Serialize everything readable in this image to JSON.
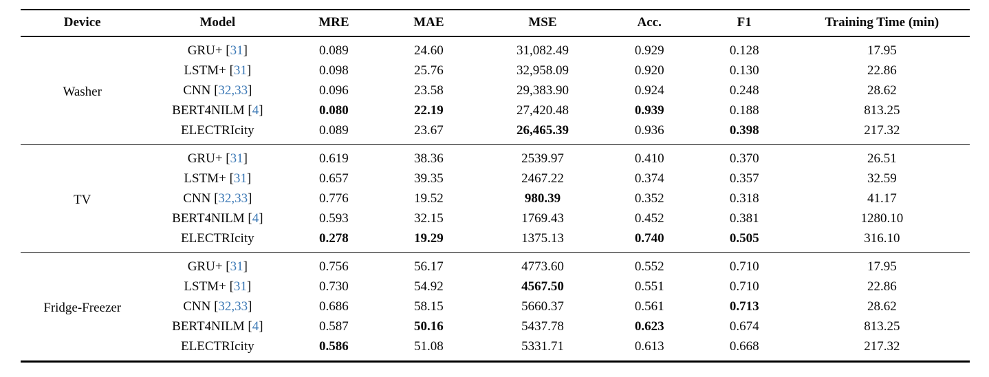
{
  "colors": {
    "citation_blue": "#3b78b5",
    "rule_black": "#000000",
    "text": "#0a0a0a"
  },
  "chart_data": {
    "type": "table",
    "columns": [
      "Device",
      "Model",
      "MRE",
      "MAE",
      "MSE",
      "Acc.",
      "F1",
      "Training Time (min)"
    ],
    "groups": [
      {
        "device": "Washer",
        "rows": [
          {
            "model": "GRU+",
            "cite": "31",
            "mre": "0.089",
            "mae": "24.60",
            "mse": "31,082.49",
            "acc": "0.929",
            "f1": "0.128",
            "time": "17.95",
            "bold": []
          },
          {
            "model": "LSTM+",
            "cite": "31",
            "mre": "0.098",
            "mae": "25.76",
            "mse": "32,958.09",
            "acc": "0.920",
            "f1": "0.130",
            "time": "22.86",
            "bold": []
          },
          {
            "model": "CNN",
            "cite": "32,33",
            "mre": "0.096",
            "mae": "23.58",
            "mse": "29,383.90",
            "acc": "0.924",
            "f1": "0.248",
            "time": "28.62",
            "bold": []
          },
          {
            "model": "BERT4NILM",
            "cite": "4",
            "mre": "0.080",
            "mae": "22.19",
            "mse": "27,420.48",
            "acc": "0.939",
            "f1": "0.188",
            "time": "813.25",
            "bold": [
              "mre",
              "mae",
              "acc"
            ]
          },
          {
            "model": "ELECTRIcity",
            "cite": null,
            "mre": "0.089",
            "mae": "23.67",
            "mse": "26,465.39",
            "acc": "0.936",
            "f1": "0.398",
            "time": "217.32",
            "bold": [
              "mse",
              "f1"
            ]
          }
        ]
      },
      {
        "device": "TV",
        "rows": [
          {
            "model": "GRU+",
            "cite": "31",
            "mre": "0.619",
            "mae": "38.36",
            "mse": "2539.97",
            "acc": "0.410",
            "f1": "0.370",
            "time": "26.51",
            "bold": []
          },
          {
            "model": "LSTM+",
            "cite": "31",
            "mre": "0.657",
            "mae": "39.35",
            "mse": "2467.22",
            "acc": "0.374",
            "f1": "0.357",
            "time": "32.59",
            "bold": []
          },
          {
            "model": "CNN",
            "cite": "32,33",
            "mre": "0.776",
            "mae": "19.52",
            "mse": "980.39",
            "acc": "0.352",
            "f1": "0.318",
            "time": "41.17",
            "bold": [
              "mse"
            ]
          },
          {
            "model": "BERT4NILM",
            "cite": "4",
            "mre": "0.593",
            "mae": "32.15",
            "mse": "1769.43",
            "acc": "0.452",
            "f1": "0.381",
            "time": "1280.10",
            "bold": []
          },
          {
            "model": "ELECTRIcity",
            "cite": null,
            "mre": "0.278",
            "mae": "19.29",
            "mse": "1375.13",
            "acc": "0.740",
            "f1": "0.505",
            "time": "316.10",
            "bold": [
              "mre",
              "mae",
              "acc",
              "f1"
            ]
          }
        ]
      },
      {
        "device": "Fridge-Freezer",
        "rows": [
          {
            "model": "GRU+",
            "cite": "31",
            "mre": "0.756",
            "mae": "56.17",
            "mse": "4773.60",
            "acc": "0.552",
            "f1": "0.710",
            "time": "17.95",
            "bold": []
          },
          {
            "model": "LSTM+",
            "cite": "31",
            "mre": "0.730",
            "mae": "54.92",
            "mse": "4567.50",
            "acc": "0.551",
            "f1": "0.710",
            "time": "22.86",
            "bold": [
              "mse"
            ]
          },
          {
            "model": "CNN",
            "cite": "32,33",
            "mre": "0.686",
            "mae": "58.15",
            "mse": "5660.37",
            "acc": "0.561",
            "f1": "0.713",
            "time": "28.62",
            "bold": [
              "f1"
            ]
          },
          {
            "model": "BERT4NILM",
            "cite": "4",
            "mre": "0.587",
            "mae": "50.16",
            "mse": "5437.78",
            "acc": "0.623",
            "f1": "0.674",
            "time": "813.25",
            "bold": [
              "mae",
              "acc"
            ]
          },
          {
            "model": "ELECTRIcity",
            "cite": null,
            "mre": "0.586",
            "mae": "51.08",
            "mse": "5331.71",
            "acc": "0.613",
            "f1": "0.668",
            "time": "217.32",
            "bold": [
              "mre"
            ]
          }
        ]
      }
    ]
  }
}
